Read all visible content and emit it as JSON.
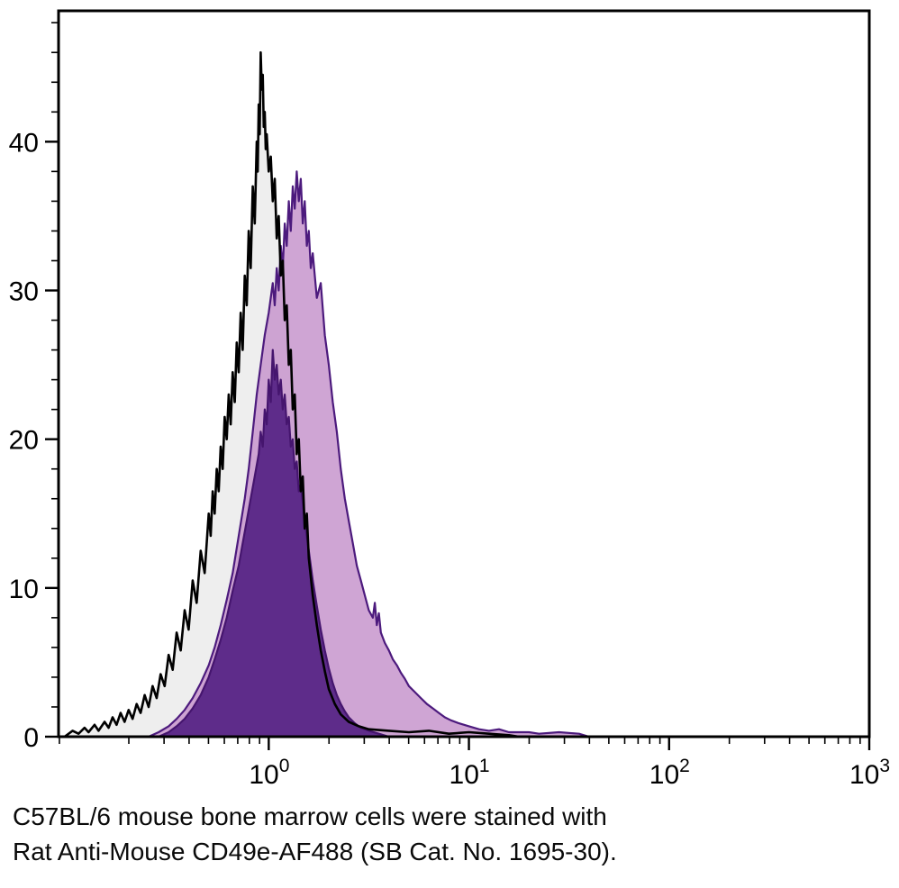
{
  "figure": {
    "caption": {
      "line1": "C57BL/6 mouse bone marrow cells were stained with",
      "line2": "Rat Anti-Mouse CD49e-AF488 (SB Cat. No. 1695-30)."
    }
  },
  "chart_data": {
    "type": "area",
    "subtype": "flow-cytometry-histogram-overlay",
    "title": "",
    "xlabel": "",
    "ylabel": "",
    "x_scale": "log10",
    "x_domain_log10": [
      -1.05,
      3.0
    ],
    "y_domain": [
      0,
      48.8
    ],
    "grid": false,
    "legend": false,
    "frame_color": "#000000",
    "x_axis": {
      "tick_base": 10,
      "tick_exponents": [
        0,
        1,
        2,
        3
      ]
    },
    "y_axis": {
      "major_ticks": [
        0,
        10,
        20,
        30,
        40
      ],
      "minor_step": 2
    },
    "series": [
      {
        "name": "control-black",
        "stroke": "#000000",
        "fill": "#ececec",
        "fill_opacity": 0.9,
        "points": [
          [
            -1.02,
            0
          ],
          [
            -0.98,
            0.4
          ],
          [
            -0.95,
            0.2
          ],
          [
            -0.92,
            0.6
          ],
          [
            -0.9,
            0.3
          ],
          [
            -0.87,
            0.8
          ],
          [
            -0.85,
            0.4
          ],
          [
            -0.82,
            1.0
          ],
          [
            -0.8,
            0.6
          ],
          [
            -0.78,
            1.3
          ],
          [
            -0.76,
            0.8
          ],
          [
            -0.74,
            1.6
          ],
          [
            -0.72,
            1.0
          ],
          [
            -0.7,
            1.8
          ],
          [
            -0.68,
            1.2
          ],
          [
            -0.66,
            2.2
          ],
          [
            -0.64,
            1.6
          ],
          [
            -0.62,
            2.8
          ],
          [
            -0.6,
            2.0
          ],
          [
            -0.58,
            3.4
          ],
          [
            -0.56,
            2.6
          ],
          [
            -0.54,
            4.2
          ],
          [
            -0.52,
            3.4
          ],
          [
            -0.5,
            5.5
          ],
          [
            -0.48,
            4.5
          ],
          [
            -0.46,
            7.0
          ],
          [
            -0.44,
            5.8
          ],
          [
            -0.42,
            8.5
          ],
          [
            -0.4,
            7.2
          ],
          [
            -0.38,
            10.5
          ],
          [
            -0.36,
            9.0
          ],
          [
            -0.34,
            12.5
          ],
          [
            -0.32,
            11.0
          ],
          [
            -0.3,
            15.0
          ],
          [
            -0.29,
            13.5
          ],
          [
            -0.28,
            16.5
          ],
          [
            -0.27,
            15.0
          ],
          [
            -0.26,
            18.0
          ],
          [
            -0.25,
            16.5
          ],
          [
            -0.24,
            19.5
          ],
          [
            -0.23,
            18.0
          ],
          [
            -0.22,
            21.5
          ],
          [
            -0.21,
            20.0
          ],
          [
            -0.2,
            23.0
          ],
          [
            -0.19,
            21.0
          ],
          [
            -0.18,
            24.5
          ],
          [
            -0.17,
            22.5
          ],
          [
            -0.16,
            26.5
          ],
          [
            -0.15,
            24.5
          ],
          [
            -0.14,
            28.5
          ],
          [
            -0.13,
            26.0
          ],
          [
            -0.12,
            31.0
          ],
          [
            -0.11,
            29.0
          ],
          [
            -0.1,
            34.0
          ],
          [
            -0.09,
            31.5
          ],
          [
            -0.08,
            37.0
          ],
          [
            -0.07,
            34.5
          ],
          [
            -0.06,
            40.0
          ],
          [
            -0.055,
            38.0
          ],
          [
            -0.05,
            42.5
          ],
          [
            -0.045,
            40.5
          ],
          [
            -0.04,
            46.0
          ],
          [
            -0.035,
            43.5
          ],
          [
            -0.03,
            44.5
          ],
          [
            -0.025,
            41.0
          ],
          [
            -0.02,
            42.0
          ],
          [
            -0.015,
            39.5
          ],
          [
            -0.01,
            40.5
          ],
          [
            0.0,
            38.0
          ],
          [
            0.01,
            39.0
          ],
          [
            0.02,
            36.0
          ],
          [
            0.03,
            37.5
          ],
          [
            0.04,
            33.5
          ],
          [
            0.05,
            35.0
          ],
          [
            0.06,
            31.0
          ],
          [
            0.07,
            32.0
          ],
          [
            0.08,
            28.0
          ],
          [
            0.09,
            29.0
          ],
          [
            0.1,
            25.0
          ],
          [
            0.11,
            26.0
          ],
          [
            0.12,
            22.0
          ],
          [
            0.13,
            23.0
          ],
          [
            0.14,
            19.0
          ],
          [
            0.15,
            20.0
          ],
          [
            0.16,
            16.5
          ],
          [
            0.17,
            17.5
          ],
          [
            0.18,
            14.0
          ],
          [
            0.19,
            15.0
          ],
          [
            0.2,
            12.0
          ],
          [
            0.22,
            9.5
          ],
          [
            0.24,
            7.5
          ],
          [
            0.26,
            5.8
          ],
          [
            0.28,
            4.4
          ],
          [
            0.3,
            3.2
          ],
          [
            0.33,
            2.2
          ],
          [
            0.36,
            1.5
          ],
          [
            0.4,
            1.0
          ],
          [
            0.45,
            0.7
          ],
          [
            0.5,
            0.5
          ],
          [
            0.6,
            0.4
          ],
          [
            0.7,
            0.3
          ],
          [
            0.8,
            0.4
          ],
          [
            0.9,
            0.2
          ],
          [
            1.0,
            0.3
          ],
          [
            1.1,
            0.2
          ],
          [
            1.2,
            0.1
          ],
          [
            1.25,
            0
          ]
        ]
      },
      {
        "name": "stained-light-purple",
        "stroke": "#4c1a7d",
        "fill": "#c795cd",
        "fill_opacity": 0.85,
        "points": [
          [
            -0.6,
            0
          ],
          [
            -0.55,
            0.3
          ],
          [
            -0.5,
            0.7
          ],
          [
            -0.46,
            1.2
          ],
          [
            -0.42,
            1.8
          ],
          [
            -0.38,
            2.6
          ],
          [
            -0.34,
            3.6
          ],
          [
            -0.3,
            4.8
          ],
          [
            -0.27,
            6.0
          ],
          [
            -0.24,
            7.5
          ],
          [
            -0.21,
            9.2
          ],
          [
            -0.18,
            11.0
          ],
          [
            -0.15,
            13.5
          ],
          [
            -0.12,
            16.0
          ],
          [
            -0.1,
            18.0
          ],
          [
            -0.08,
            20.5
          ],
          [
            -0.06,
            23.0
          ],
          [
            -0.04,
            25.0
          ],
          [
            -0.02,
            27.0
          ],
          [
            0.0,
            28.5
          ],
          [
            0.02,
            30.5
          ],
          [
            0.03,
            29.0
          ],
          [
            0.04,
            31.5
          ],
          [
            0.05,
            30.0
          ],
          [
            0.06,
            33.0
          ],
          [
            0.07,
            31.5
          ],
          [
            0.08,
            34.5
          ],
          [
            0.09,
            33.0
          ],
          [
            0.1,
            36.0
          ],
          [
            0.11,
            34.0
          ],
          [
            0.12,
            37.0
          ],
          [
            0.13,
            35.5
          ],
          [
            0.14,
            38.0
          ],
          [
            0.15,
            36.0
          ],
          [
            0.16,
            37.5
          ],
          [
            0.17,
            34.5
          ],
          [
            0.18,
            36.0
          ],
          [
            0.19,
            33.0
          ],
          [
            0.2,
            34.0
          ],
          [
            0.21,
            31.5
          ],
          [
            0.22,
            32.5
          ],
          [
            0.24,
            29.5
          ],
          [
            0.26,
            30.5
          ],
          [
            0.28,
            27.0
          ],
          [
            0.3,
            25.0
          ],
          [
            0.32,
            22.5
          ],
          [
            0.34,
            20.5
          ],
          [
            0.36,
            18.0
          ],
          [
            0.38,
            16.0
          ],
          [
            0.4,
            14.5
          ],
          [
            0.42,
            13.0
          ],
          [
            0.44,
            11.5
          ],
          [
            0.46,
            10.5
          ],
          [
            0.48,
            9.5
          ],
          [
            0.5,
            8.5
          ],
          [
            0.52,
            8.0
          ],
          [
            0.53,
            9.0
          ],
          [
            0.54,
            7.5
          ],
          [
            0.55,
            8.3
          ],
          [
            0.56,
            7.0
          ],
          [
            0.58,
            6.3
          ],
          [
            0.6,
            5.8
          ],
          [
            0.62,
            5.2
          ],
          [
            0.64,
            4.8
          ],
          [
            0.66,
            4.3
          ],
          [
            0.68,
            3.9
          ],
          [
            0.7,
            3.4
          ],
          [
            0.73,
            3.0
          ],
          [
            0.76,
            2.6
          ],
          [
            0.79,
            2.2
          ],
          [
            0.82,
            1.9
          ],
          [
            0.85,
            1.6
          ],
          [
            0.88,
            1.3
          ],
          [
            0.91,
            1.1
          ],
          [
            0.95,
            0.9
          ],
          [
            1.0,
            0.7
          ],
          [
            1.05,
            0.5
          ],
          [
            1.1,
            0.4
          ],
          [
            1.15,
            0.5
          ],
          [
            1.2,
            0.3
          ],
          [
            1.3,
            0.3
          ],
          [
            1.35,
            0.2
          ],
          [
            1.45,
            0.3
          ],
          [
            1.55,
            0.2
          ],
          [
            1.6,
            0
          ]
        ]
      },
      {
        "name": "overlap-dark-purple",
        "stroke": "#45156e",
        "fill": "#5e2c8a",
        "fill_opacity": 1.0,
        "points": [
          [
            -0.55,
            0
          ],
          [
            -0.5,
            0.3
          ],
          [
            -0.46,
            0.7
          ],
          [
            -0.42,
            1.2
          ],
          [
            -0.38,
            1.9
          ],
          [
            -0.34,
            2.8
          ],
          [
            -0.3,
            4.0
          ],
          [
            -0.27,
            5.2
          ],
          [
            -0.24,
            6.5
          ],
          [
            -0.21,
            8.0
          ],
          [
            -0.18,
            9.8
          ],
          [
            -0.15,
            11.5
          ],
          [
            -0.13,
            13.0
          ],
          [
            -0.11,
            14.5
          ],
          [
            -0.09,
            16.0
          ],
          [
            -0.07,
            17.5
          ],
          [
            -0.05,
            19.0
          ],
          [
            -0.04,
            20.5
          ],
          [
            -0.03,
            19.5
          ],
          [
            -0.02,
            22.0
          ],
          [
            -0.01,
            21.0
          ],
          [
            0.0,
            24.0
          ],
          [
            0.01,
            22.5
          ],
          [
            0.02,
            26.0
          ],
          [
            0.03,
            24.0
          ],
          [
            0.04,
            25.0
          ],
          [
            0.05,
            23.0
          ],
          [
            0.06,
            24.0
          ],
          [
            0.07,
            22.0
          ],
          [
            0.08,
            23.0
          ],
          [
            0.09,
            21.0
          ],
          [
            0.1,
            21.5
          ],
          [
            0.11,
            19.5
          ],
          [
            0.12,
            20.0
          ],
          [
            0.13,
            18.0
          ],
          [
            0.14,
            18.5
          ],
          [
            0.15,
            16.5
          ],
          [
            0.16,
            17.0
          ],
          [
            0.18,
            14.5
          ],
          [
            0.2,
            12.5
          ],
          [
            0.22,
            10.5
          ],
          [
            0.24,
            8.8
          ],
          [
            0.26,
            7.2
          ],
          [
            0.28,
            5.8
          ],
          [
            0.3,
            4.6
          ],
          [
            0.32,
            3.6
          ],
          [
            0.34,
            2.8
          ],
          [
            0.36,
            2.2
          ],
          [
            0.38,
            1.7
          ],
          [
            0.4,
            1.3
          ],
          [
            0.43,
            0.9
          ],
          [
            0.46,
            0.6
          ],
          [
            0.5,
            0.4
          ],
          [
            0.55,
            0.2
          ],
          [
            0.6,
            0
          ]
        ]
      }
    ]
  }
}
